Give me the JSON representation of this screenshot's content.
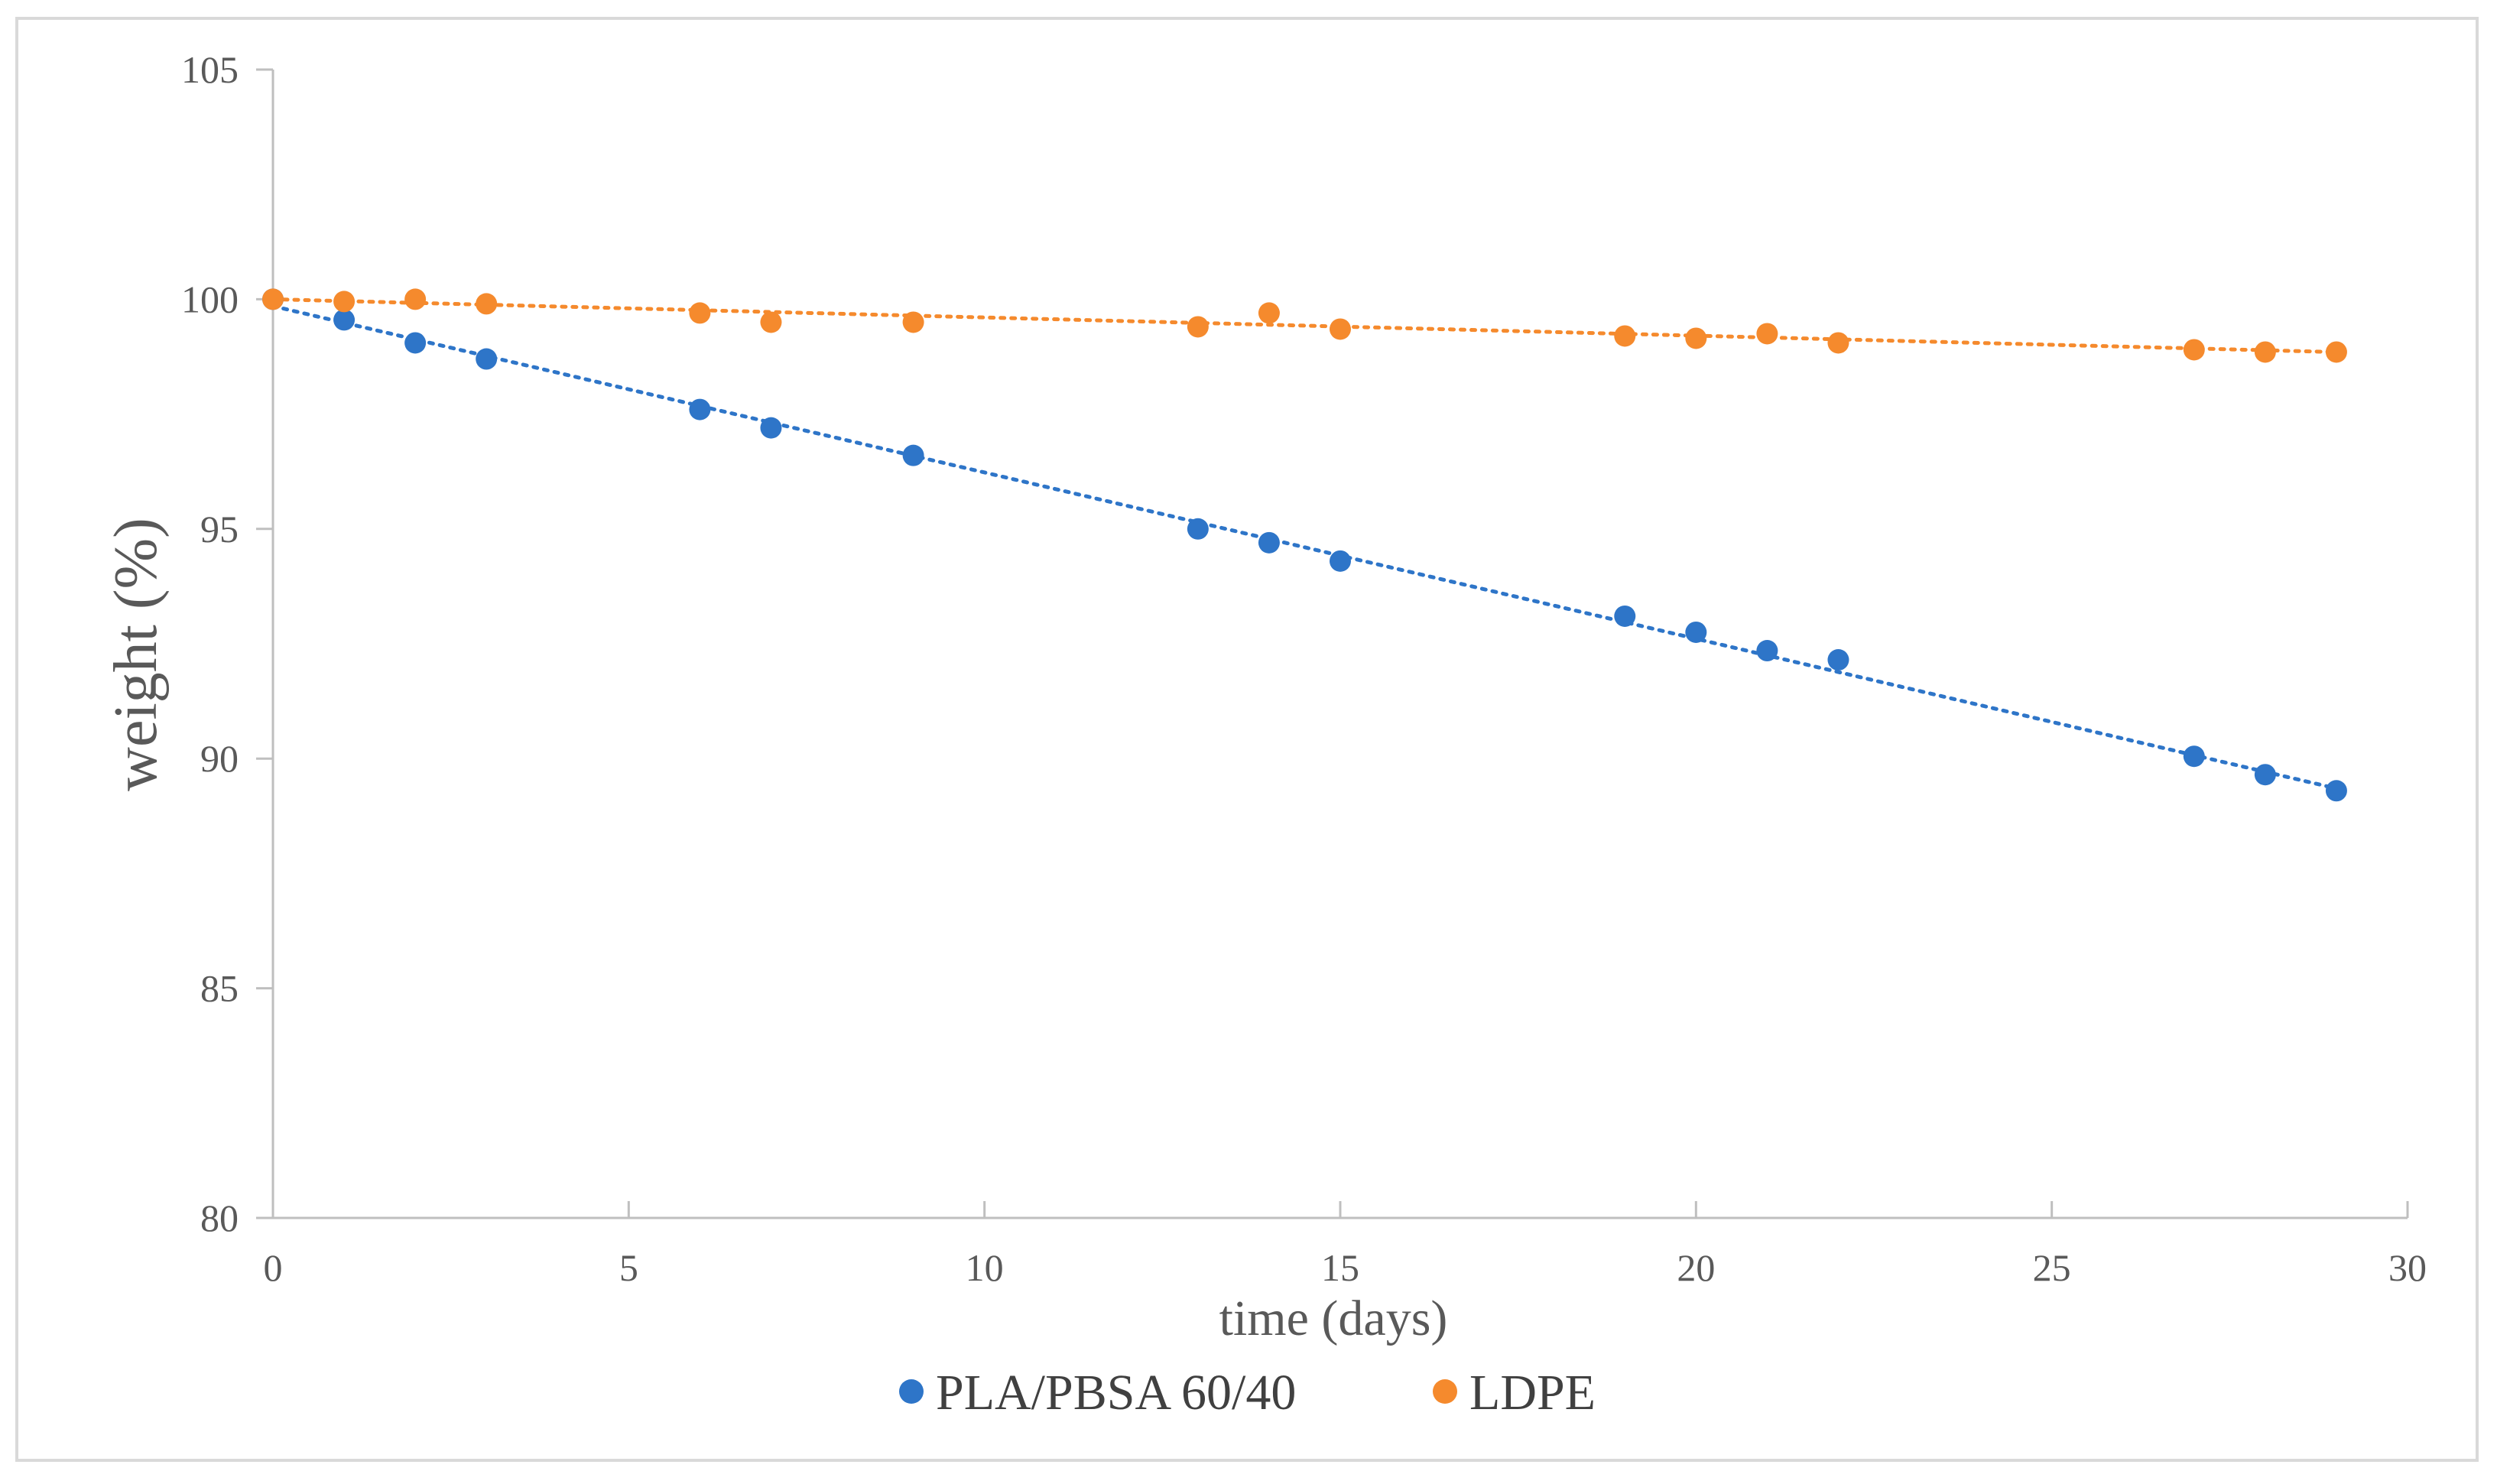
{
  "chart_data": {
    "type": "scatter",
    "title": "",
    "xlabel": "time (days)",
    "ylabel": "weight  (%)",
    "xlim": [
      0,
      30
    ],
    "ylim": [
      80,
      105
    ],
    "xticks": [
      0,
      5,
      10,
      15,
      20,
      25,
      30
    ],
    "yticks": [
      80,
      85,
      90,
      95,
      100,
      105
    ],
    "x_tick_labels": [
      "0",
      "5",
      "10",
      "15",
      "20",
      "25",
      "30"
    ],
    "y_tick_labels": [
      "80",
      "85",
      "90",
      "95",
      "100",
      "105"
    ],
    "grid": false,
    "legend_position": "bottom",
    "series": [
      {
        "name": "PLA/PBSA 60/40",
        "color": "#2E75C8",
        "x": [
          0,
          1,
          2,
          3,
          6,
          7,
          9,
          13,
          14,
          15,
          19,
          20,
          21,
          22,
          27,
          28,
          29
        ],
        "y": [
          100.0,
          99.55,
          99.05,
          98.7,
          97.6,
          97.2,
          96.6,
          95.0,
          94.7,
          94.3,
          93.1,
          92.75,
          92.35,
          92.15,
          90.05,
          89.65,
          89.3
        ],
        "trendline": {
          "style": "dotted",
          "x": [
            0,
            29
          ],
          "y": [
            99.85,
            89.35
          ]
        }
      },
      {
        "name": "LDPE",
        "color": "#F58A2D",
        "x": [
          0,
          1,
          2,
          3,
          6,
          7,
          9,
          13,
          14,
          15,
          19,
          20,
          21,
          22,
          27,
          28,
          29
        ],
        "y": [
          100.0,
          99.95,
          100.0,
          99.9,
          99.7,
          99.5,
          99.5,
          99.4,
          99.7,
          99.35,
          99.2,
          99.15,
          99.25,
          99.05,
          98.9,
          98.85,
          98.85
        ],
        "trendline": {
          "style": "dotted",
          "x": [
            0,
            29
          ],
          "y": [
            100.0,
            98.85
          ]
        }
      }
    ]
  }
}
